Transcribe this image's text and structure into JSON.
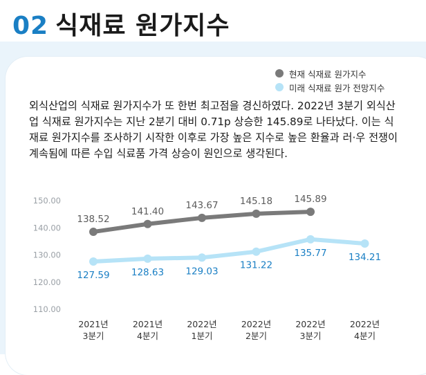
{
  "header": {
    "number": "02",
    "title": "식재료 원가지수"
  },
  "description": "외식산업의 식재료 원가지수가 또 한번 최고점을 경신하였다. 2022년 3분기 외식산업 식재료 원가지수는 지난 2분기 대비 0.71p 상승한 145.89로 나타났다. 이는 식재료 원가지수를 조사하기 시작한 이후로 가장 높은 지수로 높은 환율과 러·우 전쟁이 계속됨에 따른 수입 식료품 가격 상승이 원인으로 생각된다.",
  "colors": {
    "accent": "#1a7fc4",
    "current": "#7a7a7a",
    "forecast": "#b6e3f7"
  },
  "chart_data": {
    "type": "line",
    "categories": [
      [
        "2021년",
        "3분기"
      ],
      [
        "2021년",
        "4분기"
      ],
      [
        "2022년",
        "1분기"
      ],
      [
        "2022년",
        "2분기"
      ],
      [
        "2022년",
        "3분기"
      ],
      [
        "2022년",
        "4분기"
      ]
    ],
    "yticks": [
      "150.00",
      "140.00",
      "130.00",
      "120.00",
      "110.00"
    ],
    "ylim": [
      110,
      150
    ],
    "legend_position": "top-right",
    "grid": false,
    "series": [
      {
        "name": "현재 식재료 원가지수",
        "color": "#7a7a7a",
        "values": [
          138.52,
          141.4,
          143.67,
          145.18,
          145.89,
          null
        ],
        "labels": [
          "138.52",
          "141.40",
          "143.67",
          "145.18",
          "145.89",
          ""
        ]
      },
      {
        "name": "미래 식재료 원가 전망지수",
        "color": "#b6e3f7",
        "values": [
          127.59,
          128.63,
          129.03,
          131.22,
          135.77,
          134.21
        ],
        "labels": [
          "127.59",
          "128.63",
          "129.03",
          "131.22",
          "135.77",
          "134.21"
        ]
      }
    ]
  }
}
